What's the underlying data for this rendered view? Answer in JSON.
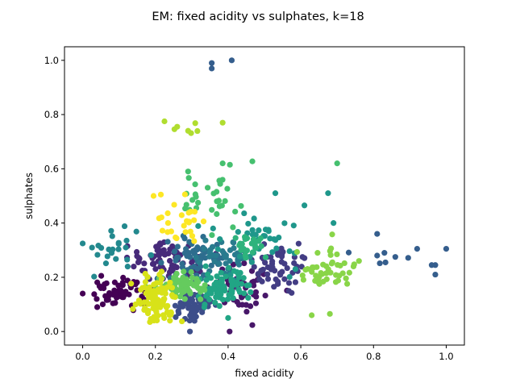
{
  "chart_data": {
    "type": "scatter",
    "title": "EM: fixed acidity vs sulphates, k=18",
    "xlabel": "fixed acidity",
    "ylabel": "sulphates",
    "xlim": [
      -0.05,
      1.05
    ],
    "ylim": [
      -0.05,
      1.05
    ],
    "xticks": [
      "0.0",
      "0.2",
      "0.4",
      "0.6",
      "0.8",
      "1.0"
    ],
    "yticks": [
      "0.0",
      "0.2",
      "0.4",
      "0.6",
      "0.8",
      "1.0"
    ],
    "grid": false,
    "legend": "none",
    "colormap": "viridis",
    "clusters": [
      {
        "id": 0,
        "color": "#440154",
        "center": [
          0.11,
          0.15
        ],
        "spread": [
          0.045,
          0.03
        ],
        "n": 55
      },
      {
        "id": 1,
        "color": "#481769",
        "center": [
          0.44,
          0.16
        ],
        "spread": [
          0.04,
          0.04
        ],
        "n": 50
      },
      {
        "id": 2,
        "color": "#472a7a",
        "center": [
          0.23,
          0.27
        ],
        "spread": [
          0.05,
          0.035
        ],
        "n": 75
      },
      {
        "id": 3,
        "color": "#433d84",
        "center": [
          0.53,
          0.24
        ],
        "spread": [
          0.04,
          0.04
        ],
        "n": 55
      },
      {
        "id": 4,
        "color": "#3d4e8a",
        "center": [
          0.31,
          0.1
        ],
        "spread": [
          0.025,
          0.03
        ],
        "n": 70
      },
      {
        "id": 5,
        "color": "#355e8d",
        "center": [
          0.85,
          0.28
        ],
        "spread": [
          0.06,
          0.03
        ],
        "n": 4
      },
      {
        "id": 6,
        "color": "#2e6d8e",
        "center": [
          0.3,
          0.27
        ],
        "spread": [
          0.04,
          0.04
        ],
        "n": 60
      },
      {
        "id": 7,
        "color": "#297b8e",
        "center": [
          0.39,
          0.27
        ],
        "spread": [
          0.04,
          0.03
        ],
        "n": 40
      },
      {
        "id": 8,
        "color": "#23898e",
        "center": [
          0.1,
          0.29
        ],
        "spread": [
          0.04,
          0.04
        ],
        "n": 25
      },
      {
        "id": 9,
        "color": "#1f978b",
        "center": [
          0.49,
          0.33
        ],
        "spread": [
          0.06,
          0.05
        ],
        "n": 40
      },
      {
        "id": 10,
        "color": "#21a585",
        "center": [
          0.38,
          0.16
        ],
        "spread": [
          0.035,
          0.03
        ],
        "n": 80
      },
      {
        "id": 11,
        "color": "#2eb37c",
        "center": [
          0.47,
          0.31
        ],
        "spread": [
          0.025,
          0.025
        ],
        "n": 25
      },
      {
        "id": 12,
        "color": "#46c06f",
        "center": [
          0.36,
          0.49
        ],
        "spread": [
          0.05,
          0.06
        ],
        "n": 30
      },
      {
        "id": 13,
        "color": "#65cb5e",
        "center": [
          0.27,
          0.17
        ],
        "spread": [
          0.035,
          0.02
        ],
        "n": 75
      },
      {
        "id": 14,
        "color": "#89d548",
        "center": [
          0.67,
          0.22
        ],
        "spread": [
          0.04,
          0.05
        ],
        "n": 45
      },
      {
        "id": 15,
        "color": "#b0dd2f",
        "center": [
          0.29,
          0.75
        ],
        "spread": [
          0.05,
          0.02
        ],
        "n": 4
      },
      {
        "id": 16,
        "color": "#d8e219",
        "center": [
          0.2,
          0.12
        ],
        "spread": [
          0.03,
          0.04
        ],
        "n": 90
      },
      {
        "id": 17,
        "color": "#fde725",
        "center": [
          0.27,
          0.41
        ],
        "spread": [
          0.04,
          0.05
        ],
        "n": 25
      }
    ],
    "points": [
      {
        "x": 0.355,
        "y": 0.99,
        "cluster": 5
      },
      {
        "x": 0.355,
        "y": 0.97,
        "cluster": 5
      },
      {
        "x": 0.41,
        "y": 1.0,
        "cluster": 5
      },
      {
        "x": 0.81,
        "y": 0.36,
        "cluster": 5
      },
      {
        "x": 0.92,
        "y": 0.305,
        "cluster": 5
      },
      {
        "x": 0.96,
        "y": 0.245,
        "cluster": 5
      },
      {
        "x": 0.97,
        "y": 0.245,
        "cluster": 5
      },
      {
        "x": 0.97,
        "y": 0.21,
        "cluster": 5
      },
      {
        "x": 1.0,
        "y": 0.305,
        "cluster": 5
      },
      {
        "x": 0.83,
        "y": 0.29,
        "cluster": 5
      },
      {
        "x": 0.86,
        "y": 0.275,
        "cluster": 5
      },
      {
        "x": 0.81,
        "y": 0.28,
        "cluster": 5
      },
      {
        "x": 0.0,
        "y": 0.14,
        "cluster": 0
      },
      {
        "x": 0.04,
        "y": 0.09,
        "cluster": 0
      },
      {
        "x": 0.05,
        "y": 0.16,
        "cluster": 0
      },
      {
        "x": 0.385,
        "y": 0.77,
        "cluster": 15
      },
      {
        "x": 0.225,
        "y": 0.775,
        "cluster": 15
      },
      {
        "x": 0.26,
        "y": 0.755,
        "cluster": 15
      },
      {
        "x": 0.29,
        "y": 0.74,
        "cluster": 15
      },
      {
        "x": 0.7,
        "y": 0.62,
        "cluster": 12
      },
      {
        "x": 0.385,
        "y": 0.62,
        "cluster": 12
      },
      {
        "x": 0.405,
        "y": 0.615,
        "cluster": 12
      },
      {
        "x": 0.29,
        "y": 0.59,
        "cluster": 12
      },
      {
        "x": 0.53,
        "y": 0.51,
        "cluster": 9
      },
      {
        "x": 0.675,
        "y": 0.51,
        "cluster": 9
      },
      {
        "x": 0.61,
        "y": 0.465,
        "cluster": 9
      },
      {
        "x": 0.69,
        "y": 0.4,
        "cluster": 9
      },
      {
        "x": 0.195,
        "y": 0.5,
        "cluster": 17
      },
      {
        "x": 0.215,
        "y": 0.505,
        "cluster": 17
      },
      {
        "x": 0.185,
        "y": 0.035,
        "cluster": 16
      },
      {
        "x": 0.24,
        "y": 0.04,
        "cluster": 16
      },
      {
        "x": 0.295,
        "y": 0.0,
        "cluster": 4
      },
      {
        "x": 0.4,
        "y": 0.05,
        "cluster": 10
      },
      {
        "x": 0.63,
        "y": 0.06,
        "cluster": 14
      },
      {
        "x": 0.68,
        "y": 0.065,
        "cluster": 14
      },
      {
        "x": 0.76,
        "y": 0.26,
        "cluster": 14
      },
      {
        "x": 0.745,
        "y": 0.24,
        "cluster": 14
      }
    ]
  }
}
